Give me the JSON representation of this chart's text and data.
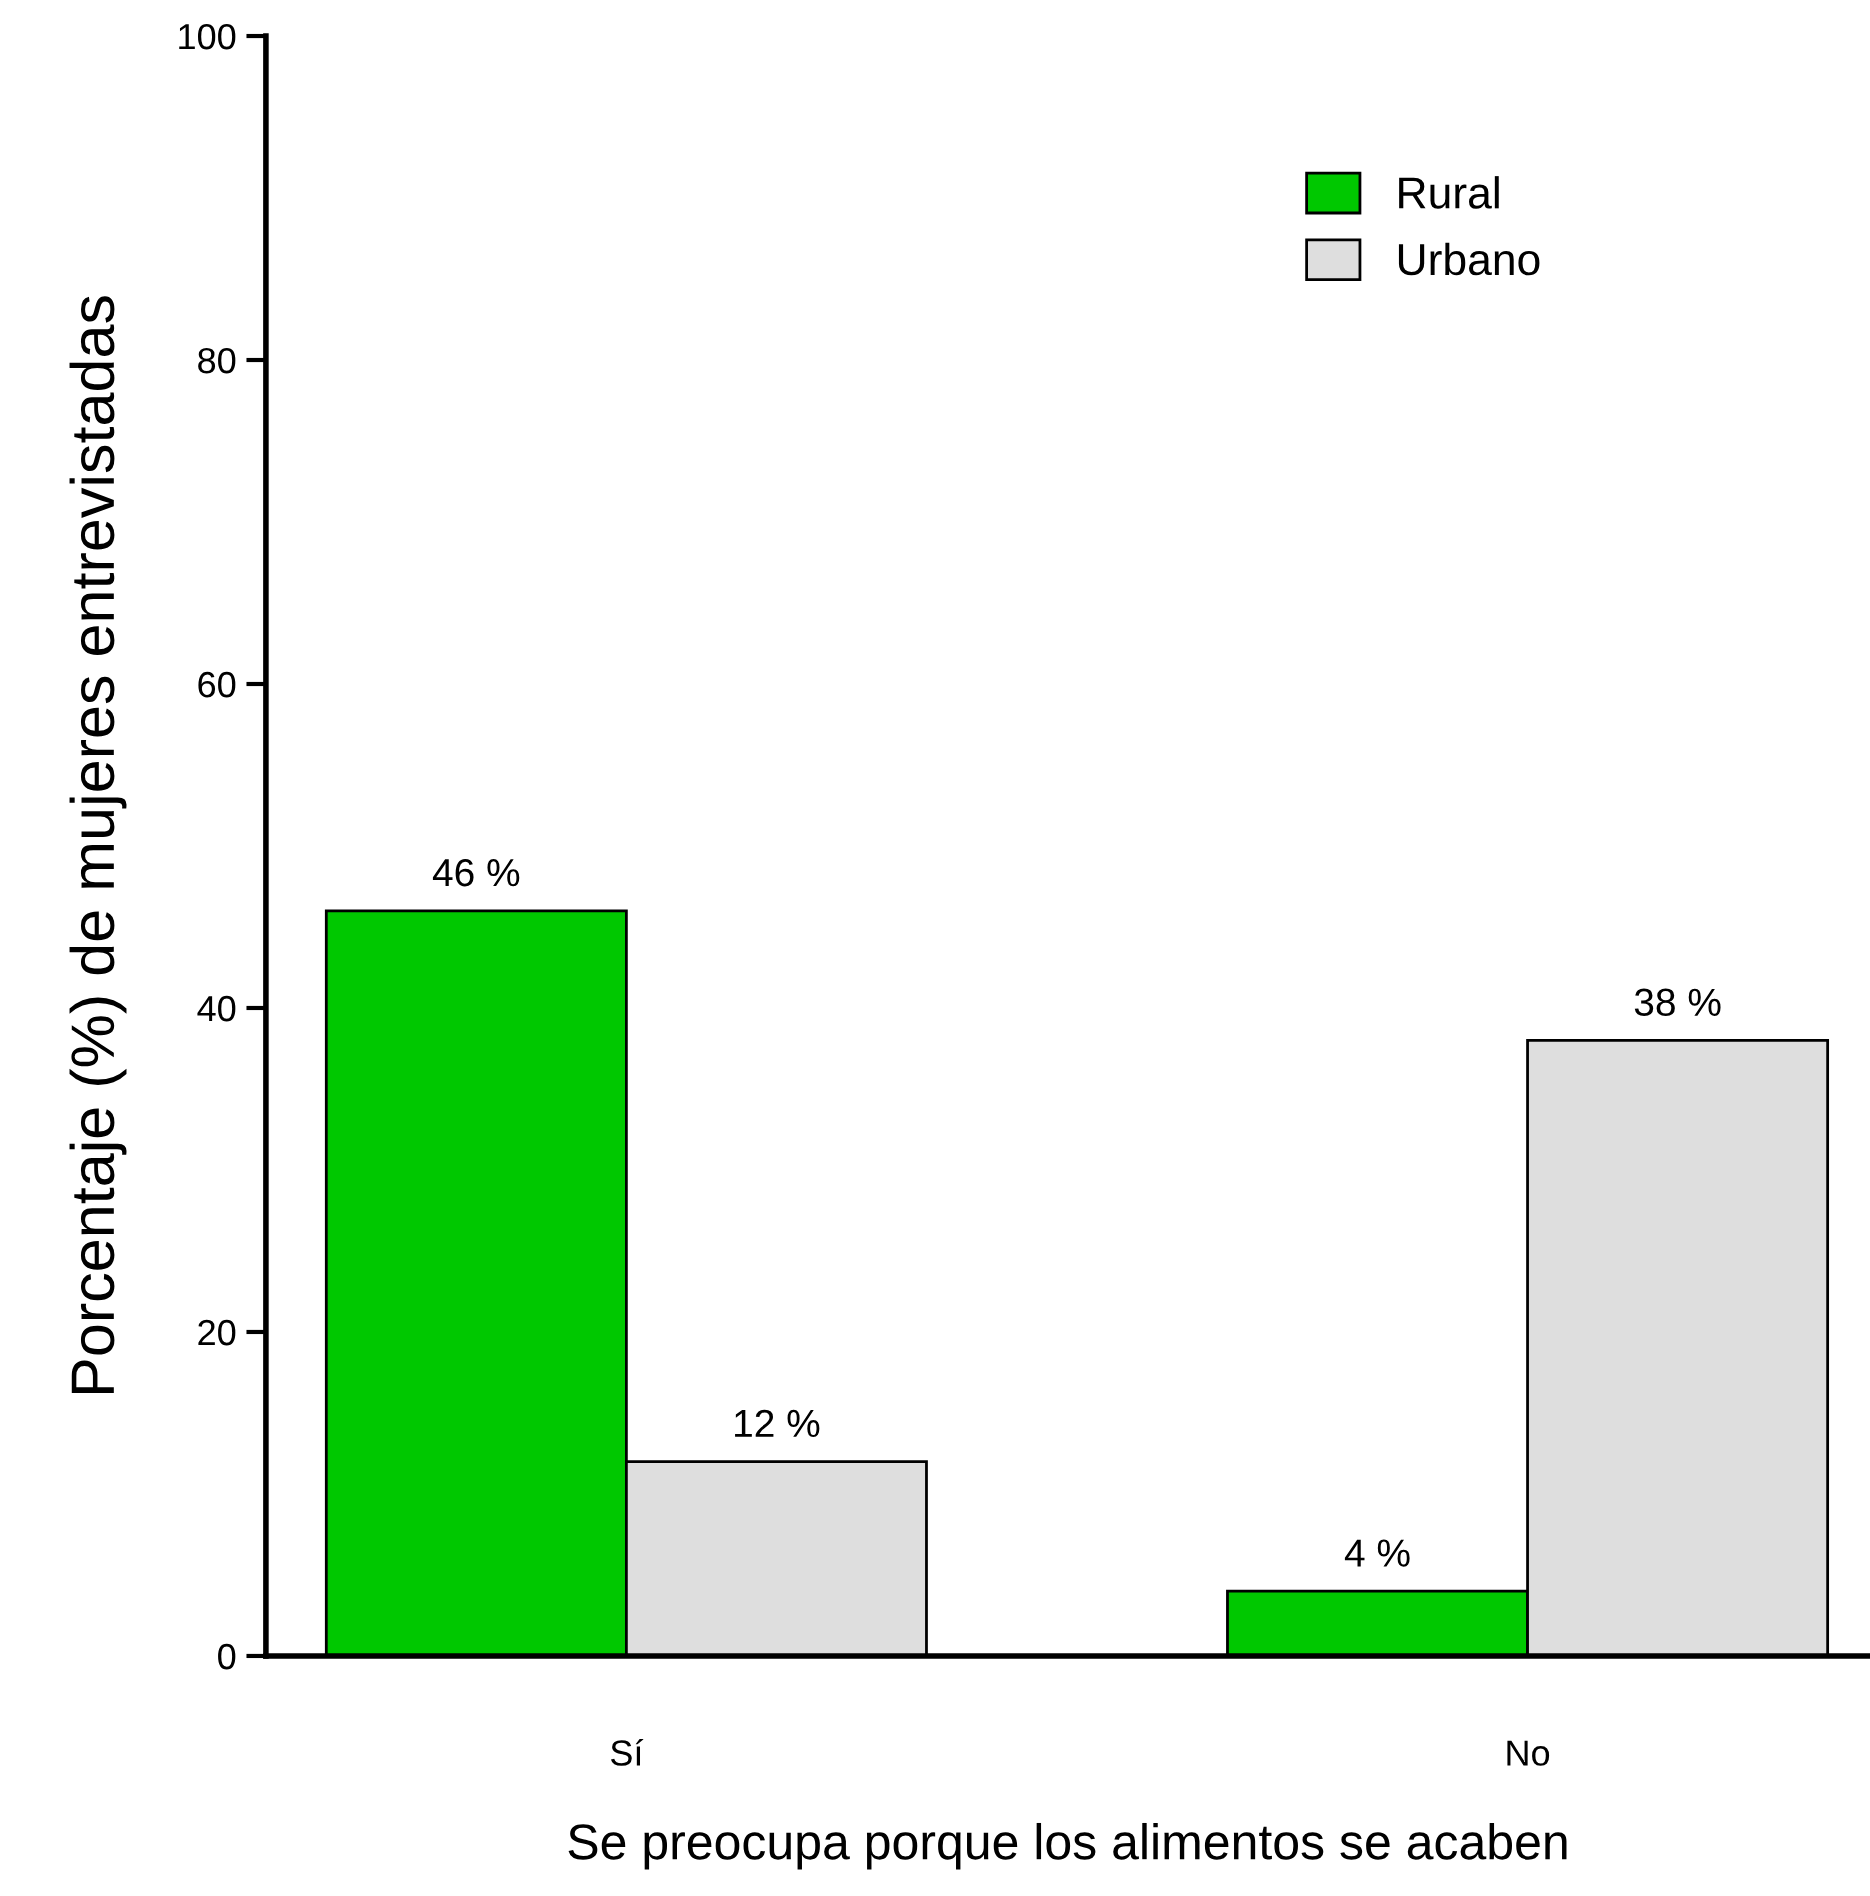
{
  "chart_data": {
    "type": "bar",
    "xlabel": "Se preocupa porque los alimentos se acaben",
    "ylabel": "Porcentaje (%) de mujeres entrevistadas",
    "categories": [
      "Sí",
      "No"
    ],
    "series": [
      {
        "name": "Rural",
        "color": "#00c800",
        "values": [
          46,
          4
        ],
        "value_labels": [
          "46 %",
          "4 %"
        ]
      },
      {
        "name": "Urbano",
        "color": "#dedede",
        "values": [
          12,
          38
        ],
        "value_labels": [
          "12 %",
          "38 %"
        ]
      }
    ],
    "ylim": [
      0,
      100
    ],
    "yticks": [
      0,
      20,
      40,
      60,
      80,
      100
    ],
    "grid": false,
    "legend": "top right"
  }
}
